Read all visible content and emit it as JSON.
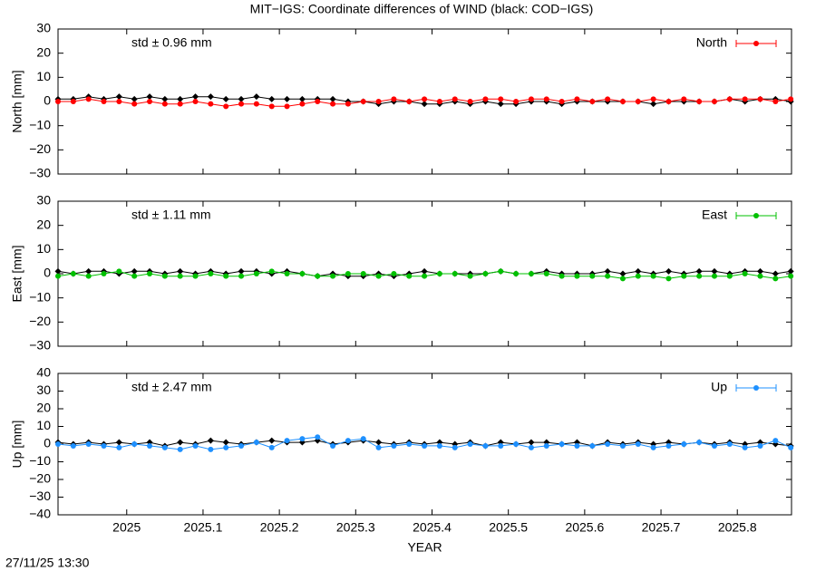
{
  "title": "MIT−IGS: Coordinate differences of WIND (black: COD−IGS)",
  "timestamp": "27/11/25 13:30",
  "chart_data": [
    {
      "type": "line",
      "ylabel": "North [mm]",
      "annotation": "std ± 0.96 mm",
      "xlim": [
        2024.91,
        2025.871
      ],
      "ylim": [
        -30,
        30
      ],
      "yticks": [
        {
          "value": -30,
          "label": "−30"
        },
        {
          "value": -20,
          "label": "−20"
        },
        {
          "value": -10,
          "label": "−10"
        },
        0,
        10,
        20,
        30
      ],
      "x": [
        2024.91,
        2024.93,
        2024.95,
        2024.97,
        2024.99,
        2025.01,
        2025.03,
        2025.05,
        2025.07,
        2025.09,
        2025.11,
        2025.13,
        2025.15,
        2025.17,
        2025.19,
        2025.21,
        2025.23,
        2025.25,
        2025.27,
        2025.29,
        2025.31,
        2025.33,
        2025.35,
        2025.37,
        2025.39,
        2025.41,
        2025.43,
        2025.45,
        2025.47,
        2025.49,
        2025.51,
        2025.53,
        2025.55,
        2025.57,
        2025.59,
        2025.61,
        2025.63,
        2025.65,
        2025.67,
        2025.69,
        2025.71,
        2025.73,
        2025.75,
        2025.77,
        2025.79,
        2025.81,
        2025.83,
        2025.85,
        2025.87
      ],
      "series": [
        {
          "color": "#000000",
          "values": [
            1,
            1,
            2,
            1,
            2,
            1,
            2,
            1,
            1,
            2,
            2,
            1,
            1,
            2,
            1,
            1,
            1,
            1,
            1,
            0,
            0,
            -1,
            0,
            0,
            -1,
            -1,
            0,
            -1,
            0,
            -1,
            -1,
            0,
            0,
            -1,
            0,
            0,
            0,
            0,
            0,
            -1,
            0,
            0,
            0,
            0,
            1,
            0,
            1,
            1,
            0
          ]
        },
        {
          "name": "North",
          "color": "#ff0000",
          "values": [
            0,
            0,
            1,
            0,
            0,
            -1,
            0,
            -1,
            -1,
            0,
            -1,
            -2,
            -1,
            -1,
            -2,
            -2,
            -1,
            0,
            -1,
            -1,
            0,
            0,
            1,
            0,
            1,
            0,
            1,
            0,
            1,
            1,
            0,
            1,
            1,
            0,
            1,
            0,
            1,
            0,
            0,
            1,
            0,
            1,
            0,
            0,
            1,
            1,
            1,
            0,
            1
          ]
        }
      ]
    },
    {
      "type": "line",
      "ylabel": "East [mm]",
      "annotation": "std ± 1.11 mm",
      "xlim": [
        2024.91,
        2025.871
      ],
      "ylim": [
        -30,
        30
      ],
      "yticks": [
        {
          "value": -30,
          "label": "−30"
        },
        {
          "value": -20,
          "label": "−20"
        },
        {
          "value": -10,
          "label": "−10"
        },
        0,
        10,
        20,
        30
      ],
      "x": [
        2024.91,
        2024.93,
        2024.95,
        2024.97,
        2024.99,
        2025.01,
        2025.03,
        2025.05,
        2025.07,
        2025.09,
        2025.11,
        2025.13,
        2025.15,
        2025.17,
        2025.19,
        2025.21,
        2025.23,
        2025.25,
        2025.27,
        2025.29,
        2025.31,
        2025.33,
        2025.35,
        2025.37,
        2025.39,
        2025.41,
        2025.43,
        2025.45,
        2025.47,
        2025.49,
        2025.51,
        2025.53,
        2025.55,
        2025.57,
        2025.59,
        2025.61,
        2025.63,
        2025.65,
        2025.67,
        2025.69,
        2025.71,
        2025.73,
        2025.75,
        2025.77,
        2025.79,
        2025.81,
        2025.83,
        2025.85,
        2025.87
      ],
      "series": [
        {
          "color": "#000000",
          "values": [
            1,
            0,
            1,
            1,
            0,
            1,
            1,
            0,
            1,
            0,
            1,
            0,
            1,
            1,
            0,
            1,
            0,
            -1,
            0,
            -1,
            -1,
            0,
            -1,
            0,
            1,
            0,
            0,
            0,
            0,
            1,
            0,
            0,
            1,
            0,
            0,
            0,
            1,
            0,
            1,
            0,
            1,
            0,
            1,
            1,
            0,
            1,
            1,
            0,
            1
          ]
        },
        {
          "name": "East",
          "color": "#00c000",
          "values": [
            -1,
            0,
            -1,
            0,
            1,
            -1,
            0,
            -1,
            -1,
            -1,
            0,
            -1,
            -1,
            0,
            1,
            0,
            0,
            -1,
            -1,
            0,
            0,
            -1,
            0,
            -1,
            -1,
            0,
            0,
            -1,
            0,
            1,
            0,
            0,
            0,
            -1,
            -1,
            -1,
            -1,
            -2,
            -1,
            -1,
            -2,
            -1,
            -1,
            -1,
            -1,
            0,
            -1,
            -2,
            -1
          ]
        }
      ]
    },
    {
      "type": "line",
      "ylabel": "Up [mm]",
      "annotation": "std ± 2.47 mm",
      "xlabel": "YEAR",
      "xlim": [
        2024.91,
        2025.871
      ],
      "ylim": [
        -40,
        40
      ],
      "xticks": [
        2025,
        2025.1,
        2025.2,
        2025.3,
        2025.4,
        2025.5,
        2025.6,
        2025.7,
        2025.8
      ],
      "yticks": [
        {
          "value": -40,
          "label": "−40"
        },
        {
          "value": -30,
          "label": "−30"
        },
        {
          "value": -20,
          "label": "−20"
        },
        {
          "value": -10,
          "label": "−10"
        },
        0,
        10,
        20,
        30,
        40
      ],
      "x": [
        2024.91,
        2024.93,
        2024.95,
        2024.97,
        2024.99,
        2025.01,
        2025.03,
        2025.05,
        2025.07,
        2025.09,
        2025.11,
        2025.13,
        2025.15,
        2025.17,
        2025.19,
        2025.21,
        2025.23,
        2025.25,
        2025.27,
        2025.29,
        2025.31,
        2025.33,
        2025.35,
        2025.37,
        2025.39,
        2025.41,
        2025.43,
        2025.45,
        2025.47,
        2025.49,
        2025.51,
        2025.53,
        2025.55,
        2025.57,
        2025.59,
        2025.61,
        2025.63,
        2025.65,
        2025.67,
        2025.69,
        2025.71,
        2025.73,
        2025.75,
        2025.77,
        2025.79,
        2025.81,
        2025.83,
        2025.85,
        2025.87
      ],
      "series": [
        {
          "color": "#000000",
          "values": [
            1,
            0,
            1,
            0,
            1,
            0,
            1,
            -1,
            1,
            0,
            2,
            1,
            0,
            1,
            2,
            1,
            1,
            2,
            0,
            1,
            2,
            1,
            0,
            1,
            0,
            1,
            0,
            1,
            -1,
            1,
            0,
            1,
            1,
            0,
            1,
            -1,
            1,
            0,
            1,
            0,
            1,
            0,
            1,
            0,
            1,
            0,
            1,
            0,
            -1
          ]
        },
        {
          "name": "Up",
          "color": "#1e90ff",
          "values": [
            0,
            -1,
            0,
            -1,
            -2,
            0,
            -1,
            -2,
            -3,
            -1,
            -3,
            -2,
            -1,
            1,
            -2,
            2,
            3,
            4,
            -1,
            2,
            3,
            -2,
            -1,
            0,
            -1,
            -1,
            -2,
            0,
            -1,
            -1,
            0,
            -2,
            -1,
            0,
            -1,
            -1,
            0,
            -1,
            0,
            -2,
            -1,
            0,
            1,
            -1,
            0,
            -2,
            -1,
            2,
            -2
          ]
        }
      ]
    }
  ]
}
